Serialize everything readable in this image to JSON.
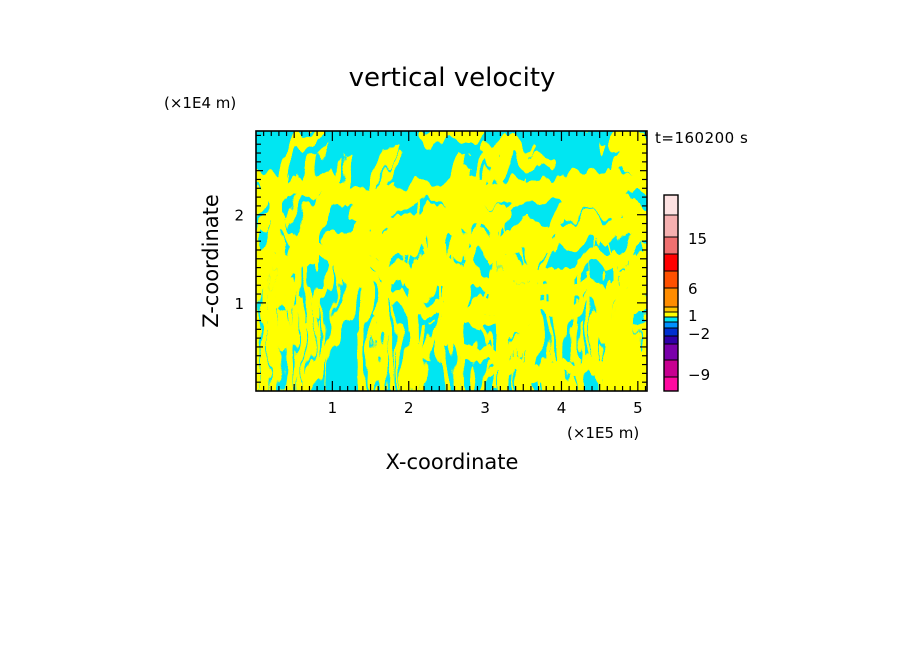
{
  "chart_data": {
    "type": "heatmap",
    "title": "vertical velocity",
    "xlabel": "X-coordinate",
    "ylabel": "Z-coordinate",
    "x_unit": "(×1E5 m)",
    "y_unit": "(×1E4 m)",
    "time_label": "t=160200 s",
    "xlim": [
      0,
      5.12
    ],
    "ylim": [
      0,
      2.95
    ],
    "x_ticks": [
      1,
      2,
      3,
      4,
      5
    ],
    "y_ticks": [
      1,
      2
    ],
    "dominant_levels": [
      "0 to 1 (cyan)",
      "1 to 2 (yellow)"
    ],
    "colorbar": {
      "labels": [
        {
          "text": "15",
          "value": 15
        },
        {
          "text": "6",
          "value": 6
        },
        {
          "text": "1",
          "value": 1
        },
        {
          "text": "−2",
          "value": -2
        },
        {
          "text": "−9",
          "value": -9
        }
      ],
      "colors": [
        "#ff0aa0",
        "#c80090",
        "#7a00aa",
        "#3000a8",
        "#0030d0",
        "#0090ff",
        "#00e6f2",
        "#ffff00",
        "#ffc800",
        "#ff8c00",
        "#ff5000",
        "#ff0000",
        "#f07070",
        "#f5b0b0",
        "#fde2e2"
      ]
    },
    "field_colors": {
      "positive": "#ffff00",
      "negative": "#00e6f2"
    }
  }
}
